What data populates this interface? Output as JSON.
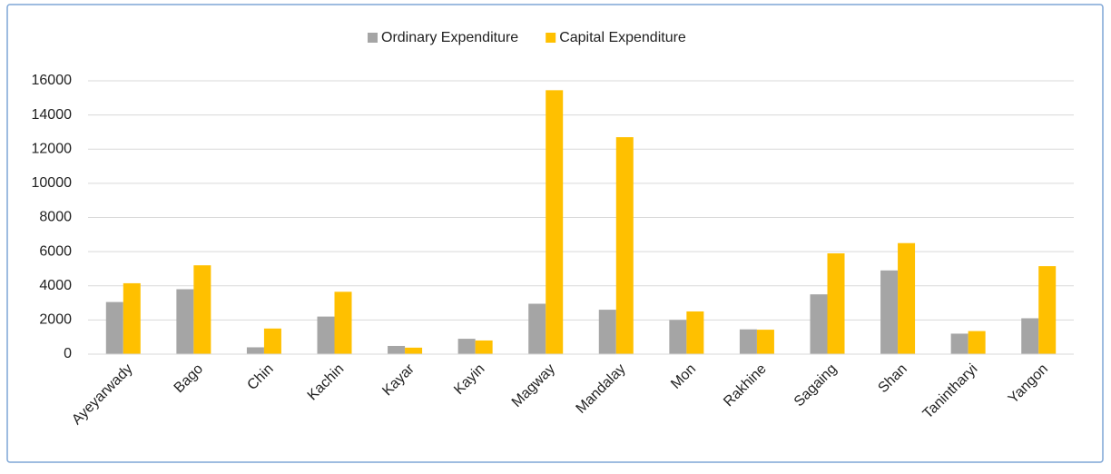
{
  "chart_data": {
    "type": "bar",
    "categories": [
      "Ayeyarwady",
      "Bago",
      "Chin",
      "Kachin",
      "Kayar",
      "Kayin",
      "Magway",
      "Mandalay",
      "Mon",
      "Rakhine",
      "Sagaing",
      "Shan",
      "Tanintharyi",
      "Yangon"
    ],
    "series": [
      {
        "name": "Ordinary Expenditure",
        "color": "#a5a5a5",
        "values": [
          3050,
          3800,
          400,
          2200,
          480,
          900,
          2950,
          2600,
          2000,
          1450,
          3500,
          4900,
          1200,
          2100
        ]
      },
      {
        "name": "Capital Expenditure",
        "color": "#ffc000",
        "values": [
          4150,
          5200,
          1500,
          3650,
          380,
          800,
          15450,
          12700,
          2500,
          1430,
          5900,
          6500,
          1350,
          5150
        ]
      }
    ],
    "ylim": [
      0,
      16000
    ],
    "yticks": [
      0,
      2000,
      4000,
      6000,
      8000,
      10000,
      12000,
      14000,
      16000
    ],
    "grid": true,
    "legend": "top"
  }
}
